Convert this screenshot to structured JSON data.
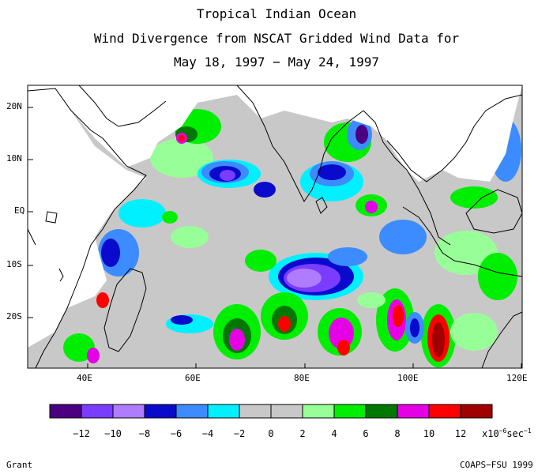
{
  "title": {
    "line1": "Tropical Indian Ocean",
    "line2": "Wind Divergence from NSCAT Gridded Wind Data for",
    "line3": "May 18, 1997 − May 24, 1997"
  },
  "map": {
    "lon_range": [
      30,
      120
    ],
    "lat_range": [
      -29,
      24
    ],
    "x_ticks": [
      "40E",
      "60E",
      "80E",
      "100E",
      "120E"
    ],
    "y_ticks": [
      "20N",
      "10N",
      "EQ",
      "10S",
      "20S"
    ]
  },
  "colorbar": {
    "colors": [
      "#4b0082",
      "#7a3cff",
      "#b07cff",
      "#0a0acd",
      "#3c8cff",
      "#00f0ff",
      "#c8c8c8",
      "#c8c8c8",
      "#98ff98",
      "#00ee00",
      "#007800",
      "#e600e6",
      "#ff0000",
      "#a00000"
    ],
    "labels": [
      "−12",
      "−10",
      "−8",
      "−6",
      "−4",
      "−2",
      "0",
      "2",
      "4",
      "6",
      "8",
      "10",
      "12"
    ],
    "units": "x10",
    "units_exp": "−6",
    "units_tail": "sec",
    "units_tail_exp": "−1"
  },
  "footer": {
    "left": "Grant",
    "right": "COAPS−FSU 1999"
  }
}
